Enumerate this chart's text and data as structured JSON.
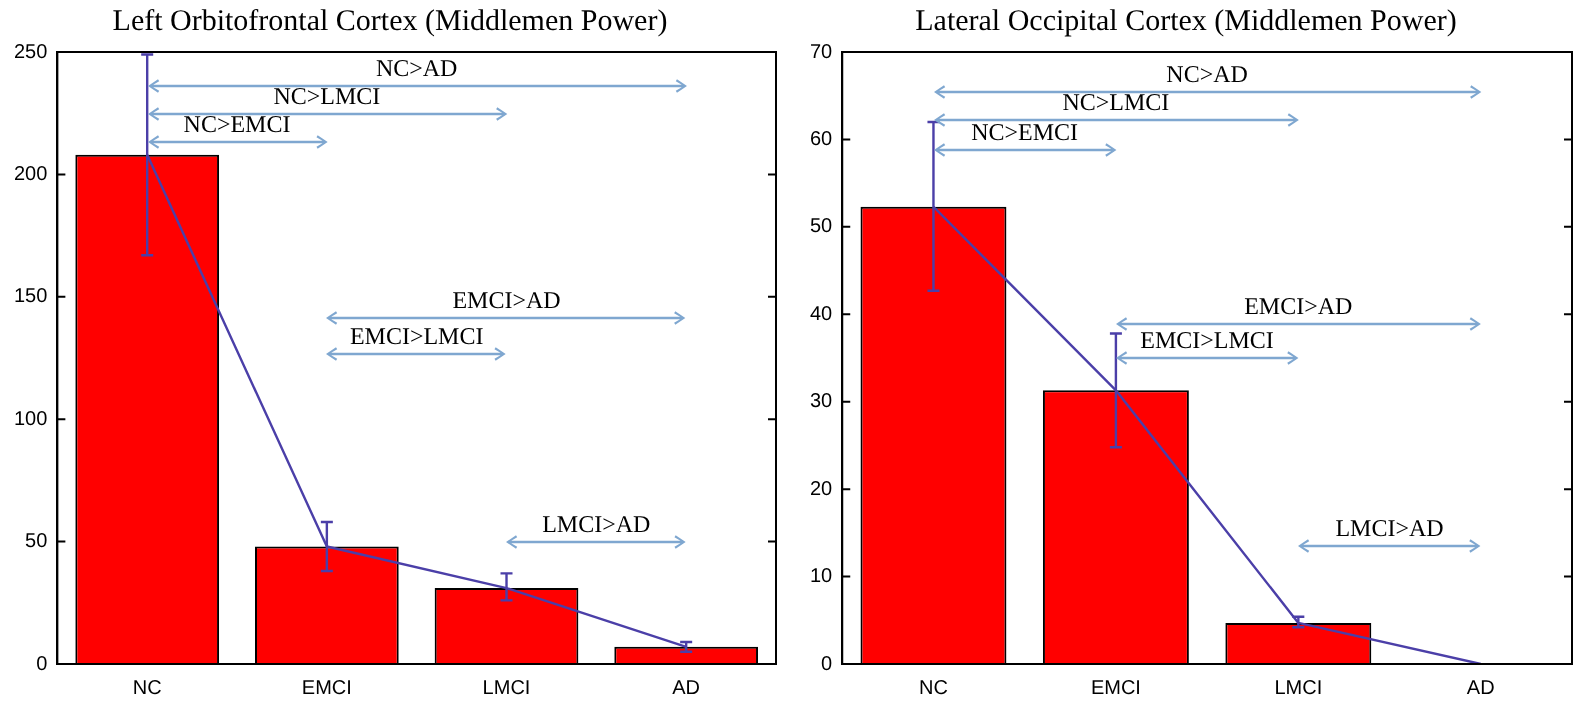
{
  "chart_data": [
    {
      "type": "bar",
      "title": "Left Orbitofrontal Cortex (Middlemen Power)",
      "categories": [
        "NC",
        "EMCI",
        "LMCI",
        "AD"
      ],
      "series": [
        {
          "color": "#ff0000",
          "values": [
            208,
            48,
            31,
            7
          ],
          "errors": [
            [
              167,
              249
            ],
            [
              38,
              58
            ],
            [
              26,
              37
            ],
            [
              5,
              9
            ]
          ]
        },
        {
          "type": "line",
          "color": "#4b3fa8",
          "values": [
            208,
            48,
            31,
            7
          ]
        }
      ],
      "ylim": [
        0,
        250
      ],
      "yticks": [
        0,
        50,
        100,
        150,
        200,
        250
      ],
      "grid": false,
      "legend": false,
      "marker": "none",
      "annotations": [
        "NC>AD",
        "NC>LMCI",
        "NC>EMCI",
        "EMCI>AD",
        "EMCI>LMCI",
        "LMCI>AD"
      ]
    },
    {
      "type": "bar",
      "title": "Lateral Occipital Cortex (Middlemen Power)",
      "categories": [
        "NC",
        "EMCI",
        "LMCI",
        "AD"
      ],
      "series": [
        {
          "color": "#ff0000",
          "values": [
            52.3,
            31.3,
            4.7,
            0
          ],
          "errors": [
            [
              42.7,
              62
            ],
            [
              24.8,
              37.8
            ],
            [
              4.2,
              5.4
            ],
            null
          ]
        },
        {
          "type": "line",
          "color": "#4b3fa8",
          "values": [
            52.3,
            31.3,
            4.7,
            0
          ]
        }
      ],
      "ylim": [
        0,
        70
      ],
      "yticks": [
        0,
        10,
        20,
        30,
        40,
        50,
        60,
        70
      ],
      "grid": false,
      "legend": false,
      "marker": "none",
      "annotations": [
        "NC>AD",
        "NC>LMCI",
        "NC>EMCI",
        "EMCI>AD",
        "EMCI>LMCI",
        "LMCI>AD"
      ]
    }
  ]
}
